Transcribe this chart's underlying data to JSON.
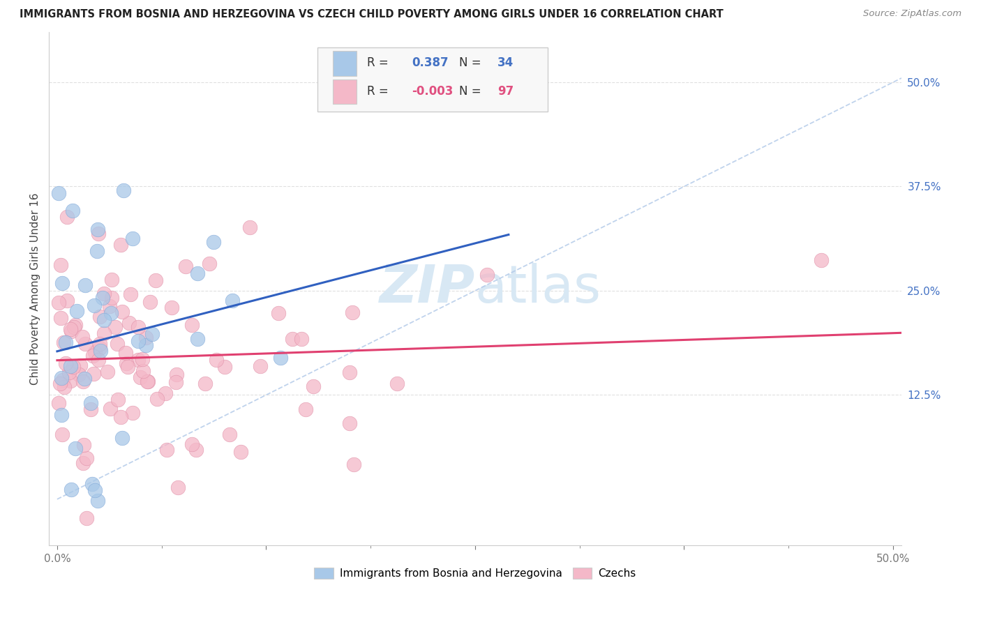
{
  "title": "IMMIGRANTS FROM BOSNIA AND HERZEGOVINA VS CZECH CHILD POVERTY AMONG GIRLS UNDER 16 CORRELATION CHART",
  "source": "Source: ZipAtlas.com",
  "ylabel": "Child Poverty Among Girls Under 16",
  "xlim": [
    -0.005,
    0.505
  ],
  "ylim": [
    -0.055,
    0.56
  ],
  "xtick_vals": [
    0.0,
    0.125,
    0.25,
    0.375,
    0.5
  ],
  "xtick_labels": [
    "0.0%",
    "",
    "",
    "",
    "50.0%"
  ],
  "ytick_vals": [
    0.125,
    0.25,
    0.375,
    0.5
  ],
  "ytick_labels": [
    "12.5%",
    "25.0%",
    "37.5%",
    "50.0%"
  ],
  "r_blue": 0.387,
  "n_blue": 34,
  "r_pink": -0.003,
  "n_pink": 97,
  "blue_color": "#a8c8e8",
  "pink_color": "#f4b8c8",
  "blue_line_color": "#3060c0",
  "pink_line_color": "#e04070",
  "diag_color": "#b0c8e8",
  "watermark_color": "#d8e8f4",
  "legend_box_color": "#f8f8f8",
  "legend_border_color": "#cccccc",
  "blue_legend_color": "#4472c4",
  "pink_legend_color": "#e05080",
  "tick_color": "#777777",
  "right_tick_color": "#4472c4",
  "grid_color": "#dddddd",
  "ylabel_color": "#444444",
  "title_color": "#222222",
  "source_color": "#888888"
}
